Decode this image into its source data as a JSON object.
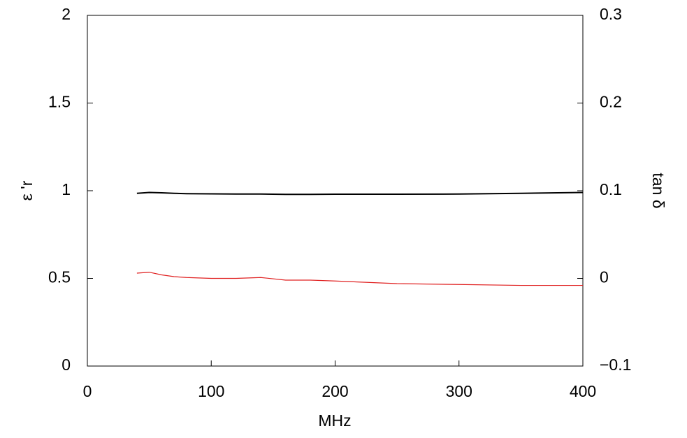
{
  "chart_data": {
    "type": "line",
    "xlabel": "MHz",
    "ylabel": "ε 'r",
    "y2label": "tan δ",
    "xlim": [
      0,
      400
    ],
    "xticks": [
      0,
      100,
      200,
      300,
      400
    ],
    "ylim": [
      0,
      2
    ],
    "yticks": [
      0,
      0.5,
      1,
      1.5,
      2
    ],
    "y2lim": [
      -0.1,
      0.3
    ],
    "y2ticks": [
      {
        "value": -0.1,
        "label": "−0.1"
      },
      0,
      0.1,
      0.2,
      0.3
    ],
    "x": [
      40,
      50,
      60,
      70,
      80,
      100,
      120,
      140,
      160,
      180,
      200,
      250,
      300,
      350,
      400
    ],
    "series": [
      {
        "color": "#000000",
        "values": [
          0.985,
          0.99,
          0.988,
          0.985,
          0.983,
          0.982,
          0.981,
          0.981,
          0.979,
          0.979,
          0.98,
          0.98,
          0.981,
          0.985,
          0.99
        ]
      },
      {
        "color": "#e02020",
        "axis": "y2",
        "values": [
          0.006,
          0.007,
          0.004,
          0.002,
          0.001,
          0,
          0,
          0.001,
          -0.002,
          -0.002,
          -0.003,
          -0.006,
          -0.007,
          -0.008,
          -0.008
        ]
      }
    ]
  }
}
